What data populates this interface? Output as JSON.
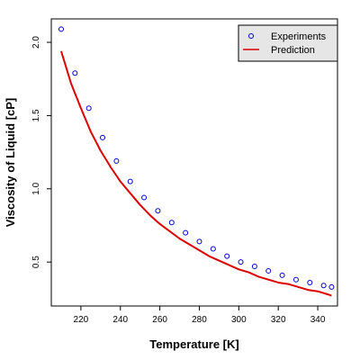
{
  "chart_data": {
    "type": "scatter",
    "title": "",
    "xlabel": "Temperature [K]",
    "ylabel": "Viscosity of Liquid [cP]",
    "xlim": [
      205,
      350
    ],
    "ylim": [
      0.2,
      2.16
    ],
    "x_ticks": [
      220,
      240,
      260,
      280,
      300,
      320,
      340
    ],
    "y_ticks": [
      0.5,
      1.0,
      1.5,
      2.0
    ],
    "y_tick_labels": [
      "0.5",
      "1.0",
      "1.5",
      "2.0"
    ],
    "grid": false,
    "legend_position": "top-right",
    "series": [
      {
        "name": "Experiments",
        "kind": "points",
        "marker": "open-circle",
        "color": "#0000cc",
        "x": [
          210,
          217,
          224,
          231,
          238,
          245,
          252,
          259,
          266,
          273,
          280,
          287,
          294,
          301,
          308,
          315,
          322,
          329,
          336,
          343,
          347
        ],
        "y": [
          2.09,
          1.79,
          1.55,
          1.35,
          1.19,
          1.05,
          0.94,
          0.85,
          0.77,
          0.7,
          0.64,
          0.59,
          0.54,
          0.5,
          0.47,
          0.44,
          0.41,
          0.38,
          0.36,
          0.34,
          0.33
        ]
      },
      {
        "name": "Prediction",
        "kind": "line",
        "color": "#dd0000",
        "x": [
          210,
          215,
          220,
          225,
          230,
          235,
          240,
          245,
          250,
          255,
          260,
          265,
          270,
          275,
          280,
          285,
          290,
          295,
          300,
          305,
          310,
          315,
          320,
          325,
          330,
          335,
          340,
          345,
          347
        ],
        "y": [
          1.94,
          1.72,
          1.55,
          1.39,
          1.26,
          1.15,
          1.05,
          0.97,
          0.89,
          0.82,
          0.76,
          0.71,
          0.66,
          0.62,
          0.58,
          0.54,
          0.51,
          0.48,
          0.45,
          0.43,
          0.4,
          0.38,
          0.36,
          0.35,
          0.33,
          0.31,
          0.3,
          0.28,
          0.27
        ]
      }
    ]
  }
}
